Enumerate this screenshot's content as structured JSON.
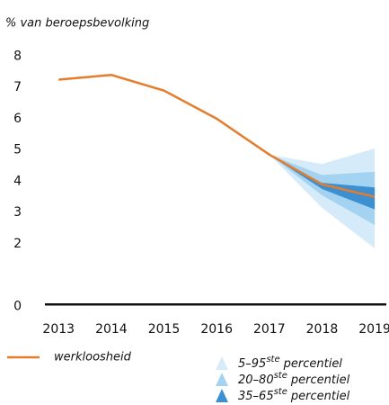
{
  "chart_data": {
    "type": "fan",
    "y_label": "% van beroepsbevolking",
    "x": [
      2013,
      2014,
      2015,
      2016,
      2017,
      2018,
      2019
    ],
    "xlim": [
      2012.74,
      2019.22
    ],
    "xticks": [
      2013,
      2014,
      2015,
      2016,
      2017,
      2018,
      2019
    ],
    "ylim": [
      -0.05,
      8.3
    ],
    "yticks": [
      0,
      2,
      3,
      4,
      5,
      6,
      7,
      8
    ],
    "series": [
      {
        "name": "werkloosheid",
        "color": "#e57c2c",
        "values": [
          7.25,
          7.4,
          6.9,
          6.0,
          4.85,
          3.9,
          3.5
        ]
      }
    ],
    "bands": [
      {
        "name_parts": [
          "5–95",
          "ste",
          "percentiel"
        ],
        "color": "#d5ebf9",
        "lower": [
          null,
          null,
          null,
          null,
          4.85,
          3.15,
          1.85
        ],
        "upper": [
          null,
          null,
          null,
          null,
          4.85,
          4.55,
          5.05
        ]
      },
      {
        "name_parts": [
          "20–80",
          "ste",
          "percentiel"
        ],
        "color": "#a4d3f1",
        "lower": [
          null,
          null,
          null,
          null,
          4.85,
          3.55,
          2.6
        ],
        "upper": [
          null,
          null,
          null,
          null,
          4.85,
          4.2,
          4.3
        ]
      },
      {
        "name_parts": [
          "35–65",
          "ste",
          "percentiel"
        ],
        "color": "#3c8fd0",
        "lower": [
          null,
          null,
          null,
          null,
          4.85,
          3.75,
          3.1
        ],
        "upper": [
          null,
          null,
          null,
          null,
          4.85,
          3.95,
          3.8
        ]
      }
    ]
  }
}
